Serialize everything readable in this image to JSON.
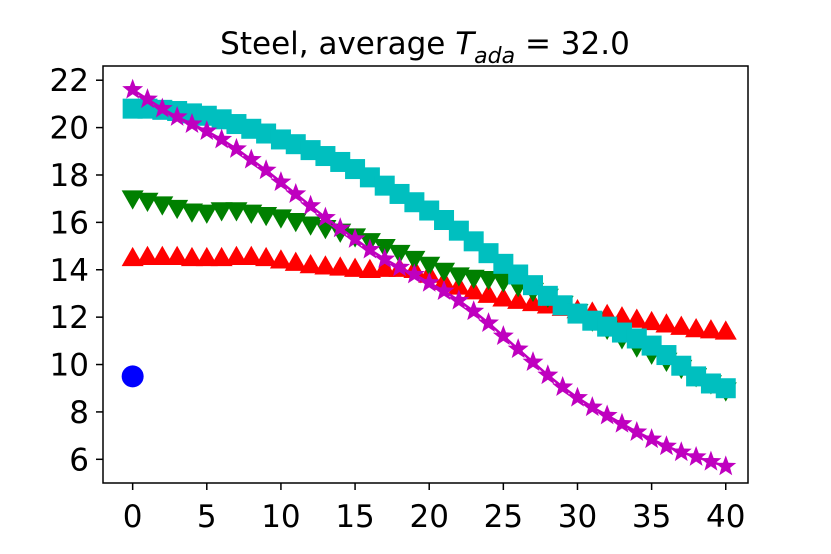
{
  "chart_data": {
    "type": "scatter",
    "title": {
      "prefix": "Steel, average ",
      "symbol": "T",
      "subscript": "ada",
      "suffix": " = 32.0"
    },
    "xlabel": "",
    "ylabel": "",
    "xlim": [
      -2,
      41.5
    ],
    "ylim": [
      5,
      22.6
    ],
    "xticks": [
      0,
      5,
      10,
      15,
      20,
      25,
      30,
      35,
      40
    ],
    "yticks": [
      6,
      8,
      10,
      12,
      14,
      16,
      18,
      20,
      22
    ],
    "grid": false,
    "legend": "none",
    "series": [
      {
        "name": "blue-circle",
        "marker": "circle",
        "color": "#0000ff",
        "x": [
          0
        ],
        "y": [
          9.5
        ]
      },
      {
        "name": "red-triangle-up",
        "marker": "triangle-up",
        "color": "#ff0000",
        "x": [
          0,
          1,
          2,
          3,
          4,
          5,
          6,
          7,
          8,
          9,
          10,
          11,
          12,
          13,
          14,
          15,
          16,
          17,
          18,
          19,
          20,
          21,
          22,
          23,
          24,
          25,
          26,
          27,
          28,
          29,
          30,
          31,
          32,
          33,
          34,
          35,
          36,
          37,
          38,
          39,
          40
        ],
        "y": [
          14.5,
          14.55,
          14.55,
          14.55,
          14.5,
          14.5,
          14.5,
          14.55,
          14.55,
          14.5,
          14.4,
          14.3,
          14.2,
          14.15,
          14.1,
          14.05,
          14.0,
          14.05,
          14.05,
          14.0,
          13.8,
          13.5,
          13.3,
          13.1,
          12.95,
          12.8,
          12.7,
          12.6,
          12.5,
          12.4,
          12.3,
          12.2,
          12.1,
          12.0,
          11.9,
          11.8,
          11.7,
          11.6,
          11.5,
          11.45,
          11.4
        ]
      },
      {
        "name": "green-triangle-down",
        "marker": "triangle-down",
        "color": "#008000",
        "x": [
          0,
          1,
          2,
          3,
          4,
          5,
          6,
          7,
          8,
          9,
          10,
          11,
          12,
          13,
          14,
          15,
          16,
          17,
          18,
          19,
          20,
          21,
          22,
          23,
          24,
          25,
          26,
          27,
          28,
          29,
          30,
          31,
          32,
          33,
          34,
          35,
          36,
          37,
          38,
          39,
          40
        ],
        "y": [
          17.0,
          16.9,
          16.75,
          16.6,
          16.45,
          16.4,
          16.5,
          16.5,
          16.4,
          16.3,
          16.2,
          16.05,
          15.9,
          15.75,
          15.6,
          15.4,
          15.2,
          14.95,
          14.7,
          14.45,
          14.2,
          13.95,
          13.75,
          13.65,
          13.6,
          13.5,
          13.3,
          13.1,
          12.85,
          12.55,
          12.2,
          11.85,
          11.5,
          11.1,
          10.75,
          10.45,
          10.15,
          9.85,
          9.5,
          9.2,
          8.9
        ]
      },
      {
        "name": "cyan-square",
        "marker": "square",
        "color": "#00bfbf",
        "x": [
          0,
          1,
          2,
          3,
          4,
          5,
          6,
          7,
          8,
          9,
          10,
          11,
          12,
          13,
          14,
          15,
          16,
          17,
          18,
          19,
          20,
          21,
          22,
          23,
          24,
          25,
          26,
          27,
          28,
          29,
          30,
          31,
          32,
          33,
          34,
          35,
          36,
          37,
          38,
          39,
          40
        ],
        "y": [
          20.8,
          20.8,
          20.75,
          20.7,
          20.6,
          20.5,
          20.35,
          20.15,
          19.95,
          19.75,
          19.5,
          19.3,
          19.05,
          18.8,
          18.55,
          18.25,
          17.9,
          17.55,
          17.2,
          16.85,
          16.5,
          16.1,
          15.65,
          15.2,
          14.7,
          14.25,
          13.8,
          13.35,
          12.9,
          12.5,
          12.15,
          11.85,
          11.6,
          11.35,
          11.1,
          10.8,
          10.4,
          9.95,
          9.5,
          9.2,
          9.0
        ]
      },
      {
        "name": "magenta-star",
        "marker": "star",
        "color": "#bf00bf",
        "line": true,
        "x": [
          0,
          1,
          2,
          3,
          4,
          5,
          6,
          7,
          8,
          9,
          10,
          11,
          12,
          13,
          14,
          15,
          16,
          17,
          18,
          19,
          20,
          21,
          22,
          23,
          24,
          25,
          26,
          27,
          28,
          29,
          30,
          31,
          32,
          33,
          34,
          35,
          36,
          37,
          38,
          39,
          40
        ],
        "y": [
          21.6,
          21.2,
          20.8,
          20.45,
          20.15,
          19.85,
          19.5,
          19.1,
          18.65,
          18.2,
          17.7,
          17.2,
          16.7,
          16.2,
          15.75,
          15.3,
          14.85,
          14.45,
          14.1,
          13.8,
          13.45,
          13.1,
          12.7,
          12.25,
          11.75,
          11.2,
          10.65,
          10.1,
          9.55,
          9.05,
          8.6,
          8.2,
          7.85,
          7.5,
          7.15,
          6.85,
          6.55,
          6.3,
          6.1,
          5.9,
          5.7
        ]
      }
    ]
  }
}
